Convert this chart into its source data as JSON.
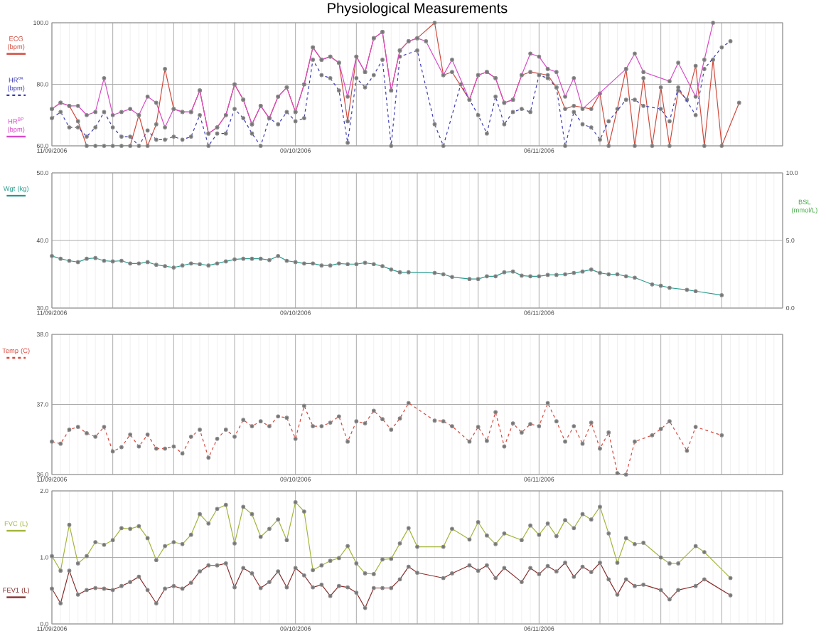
{
  "chart_data": [
    {
      "type": "line",
      "title": "Physiological Measurements",
      "xlim": [
        "2006-09-11",
        "2006-12-04"
      ],
      "xticks": [
        {
          "value": "2006-09-11",
          "label": "11/09/2006"
        },
        {
          "value": "2006-09-18",
          "label": null
        },
        {
          "value": "2006-09-25",
          "label": null
        },
        {
          "value": "2006-10-02",
          "label": null
        },
        {
          "value": "2006-10-09",
          "label": "09/10/2006"
        },
        {
          "value": "2006-10-16",
          "label": null
        },
        {
          "value": "2006-10-23",
          "label": null
        },
        {
          "value": "2006-10-30",
          "label": null
        },
        {
          "value": "2006-11-06",
          "label": "06/11/2006"
        },
        {
          "value": "2006-11-13",
          "label": null
        },
        {
          "value": "2006-11-20",
          "label": null
        },
        {
          "value": "2006-11-27",
          "label": null
        },
        {
          "value": "2006-12-04",
          "label": null
        }
      ],
      "ylim": [
        60,
        100
      ],
      "yticks": [
        {
          "value": 60,
          "label": "60.0"
        },
        {
          "value": 80,
          "label": "80.0"
        },
        {
          "value": 100,
          "label": "100.0"
        }
      ],
      "grid": true,
      "legend": "left",
      "marker": "circle",
      "series": [
        {
          "name": "ECG (bpm)",
          "color": "#d04a3c",
          "x": [
            "2006-09-11",
            "2006-09-12",
            "2006-09-13",
            "2006-09-14",
            "2006-09-15",
            "2006-09-16",
            "2006-09-17",
            "2006-09-18",
            "2006-09-19",
            "2006-09-20",
            "2006-09-21",
            "2006-09-22",
            "2006-09-23",
            "2006-09-24",
            "2006-09-25",
            "2006-09-26",
            "2006-09-27",
            "2006-09-28",
            "2006-09-29",
            "2006-09-30",
            "2006-10-01",
            "2006-10-02",
            "2006-10-03",
            "2006-10-04",
            "2006-10-05",
            "2006-10-06",
            "2006-10-07",
            "2006-10-08",
            "2006-10-09",
            "2006-10-10",
            "2006-10-11",
            "2006-10-12",
            "2006-10-13",
            "2006-10-14",
            "2006-10-15",
            "2006-10-16",
            "2006-10-17",
            "2006-10-18",
            "2006-10-19",
            "2006-10-20",
            "2006-10-21",
            "2006-10-22",
            "2006-10-23",
            "2006-10-25",
            "2006-10-26",
            "2006-10-27",
            "2006-10-29",
            "2006-10-30",
            "2006-10-31",
            "2006-11-01",
            "2006-11-02",
            "2006-11-03",
            "2006-11-04",
            "2006-11-05",
            "2006-11-07",
            "2006-11-08",
            "2006-11-09",
            "2006-11-10",
            "2006-11-12",
            "2006-11-13",
            "2006-11-14",
            "2006-11-15",
            "2006-11-16",
            "2006-11-17",
            "2006-11-18",
            "2006-11-19",
            "2006-11-20",
            "2006-11-21",
            "2006-11-22",
            "2006-11-23",
            "2006-11-24",
            "2006-11-25",
            "2006-11-26",
            "2006-11-27",
            "2006-11-29"
          ],
          "values": [
            72,
            74,
            73,
            68,
            60,
            60,
            60,
            60,
            60,
            60,
            70,
            60,
            67,
            85,
            72,
            71,
            71,
            78,
            64,
            66,
            70,
            80,
            75,
            67,
            73,
            69,
            76,
            79,
            71,
            80,
            92,
            88,
            89,
            87,
            68,
            89,
            84,
            95,
            97,
            78,
            91,
            94,
            95,
            100,
            83,
            84,
            75,
            83,
            84,
            82,
            74,
            75,
            83,
            84,
            83,
            79,
            72,
            73,
            72,
            77,
            60,
            72,
            85,
            60,
            82,
            60,
            79,
            60,
            78,
            75,
            86,
            60,
            88,
            60,
            74
          ]
        },
        {
          "name": "HR$^{ox}$ (bpm)",
          "color": "#3c3cb4",
          "line_style": "dashed",
          "x": [
            "2006-09-11",
            "2006-09-12",
            "2006-09-13",
            "2006-09-14",
            "2006-09-15",
            "2006-09-16",
            "2006-09-17",
            "2006-09-18",
            "2006-09-19",
            "2006-09-20",
            "2006-09-21",
            "2006-09-22",
            "2006-09-23",
            "2006-09-24",
            "2006-09-25",
            "2006-09-26",
            "2006-09-27",
            "2006-09-28",
            "2006-09-29",
            "2006-09-30",
            "2006-10-01",
            "2006-10-02",
            "2006-10-03",
            "2006-10-04",
            "2006-10-05",
            "2006-10-06",
            "2006-10-07",
            "2006-10-08",
            "2006-10-09",
            "2006-10-10",
            "2006-10-11",
            "2006-10-12",
            "2006-10-13",
            "2006-10-14",
            "2006-10-15",
            "2006-10-16",
            "2006-10-17",
            "2006-10-18",
            "2006-10-19",
            "2006-10-20",
            "2006-10-21",
            "2006-10-23",
            "2006-10-25",
            "2006-10-26",
            "2006-10-28",
            "2006-10-30",
            "2006-10-31",
            "2006-11-01",
            "2006-11-02",
            "2006-11-03",
            "2006-11-04",
            "2006-11-05",
            "2006-11-06",
            "2006-11-07",
            "2006-11-08",
            "2006-11-09",
            "2006-11-10",
            "2006-11-11",
            "2006-11-12",
            "2006-11-13",
            "2006-11-14",
            "2006-11-16",
            "2006-11-17",
            "2006-11-18",
            "2006-11-20",
            "2006-11-21",
            "2006-11-22",
            "2006-11-24",
            "2006-11-25",
            "2006-11-27",
            "2006-11-28"
          ],
          "values": [
            69,
            71,
            66,
            66,
            63,
            66,
            71,
            66,
            63,
            63,
            60,
            65,
            62,
            62,
            63,
            62,
            63,
            70,
            60,
            64,
            64,
            72,
            69,
            64,
            60,
            69,
            67,
            71,
            68,
            69,
            88,
            83,
            82,
            78,
            61,
            82,
            79,
            83,
            88,
            60,
            89,
            91,
            67,
            60,
            80,
            70,
            64,
            76,
            67,
            71,
            72,
            71,
            83,
            82,
            79,
            60,
            71,
            67,
            66,
            62,
            68,
            75,
            75,
            73,
            72,
            68,
            79,
            70,
            85,
            92,
            94
          ]
        },
        {
          "name": "HR$^{BP}$ (bpm)",
          "color": "#d94ac8",
          "x": [
            "2006-09-11",
            "2006-09-12",
            "2006-09-13",
            "2006-09-14",
            "2006-09-15",
            "2006-09-16",
            "2006-09-17",
            "2006-09-18",
            "2006-09-19",
            "2006-09-20",
            "2006-09-21",
            "2006-09-22",
            "2006-09-23",
            "2006-09-24",
            "2006-09-25",
            "2006-09-26",
            "2006-09-27",
            "2006-09-28",
            "2006-09-29",
            "2006-09-30",
            "2006-10-01",
            "2006-10-02",
            "2006-10-03",
            "2006-10-04",
            "2006-10-05",
            "2006-10-06",
            "2006-10-07",
            "2006-10-08",
            "2006-10-09",
            "2006-10-10",
            "2006-10-11",
            "2006-10-12",
            "2006-10-13",
            "2006-10-14",
            "2006-10-15",
            "2006-10-16",
            "2006-10-17",
            "2006-10-18",
            "2006-10-19",
            "2006-10-20",
            "2006-10-21",
            "2006-10-22",
            "2006-10-23",
            "2006-10-24",
            "2006-10-26",
            "2006-10-27",
            "2006-10-29",
            "2006-10-30",
            "2006-10-31",
            "2006-11-01",
            "2006-11-02",
            "2006-11-03",
            "2006-11-04",
            "2006-11-05",
            "2006-11-06",
            "2006-11-07",
            "2006-11-08",
            "2006-11-09",
            "2006-11-10",
            "2006-11-11",
            "2006-11-16",
            "2006-11-17",
            "2006-11-18",
            "2006-11-21",
            "2006-11-22",
            "2006-11-24",
            "2006-11-25",
            "2006-11-26"
          ],
          "values": [
            72,
            74,
            73,
            73,
            70,
            71,
            82,
            70,
            71,
            72,
            70,
            76,
            74,
            66,
            72,
            71,
            71,
            78,
            64,
            66,
            70,
            80,
            75,
            67,
            73,
            69,
            76,
            79,
            71,
            80,
            92,
            88,
            89,
            87,
            76,
            89,
            84,
            95,
            97,
            78,
            91,
            94,
            95,
            94,
            83,
            88,
            75,
            83,
            84,
            82,
            74,
            75,
            83,
            90,
            89,
            85,
            84,
            76,
            82,
            72,
            85,
            90,
            84,
            81,
            87,
            76,
            88,
            100
          ]
        }
      ]
    },
    {
      "type": "line",
      "xlim": [
        "2006-09-11",
        "2006-12-04"
      ],
      "xticks": [
        {
          "value": "2006-09-11",
          "label": "11/09/2006"
        },
        {
          "value": "2006-09-18",
          "label": null
        },
        {
          "value": "2006-09-25",
          "label": null
        },
        {
          "value": "2006-10-02",
          "label": null
        },
        {
          "value": "2006-10-09",
          "label": "09/10/2006"
        },
        {
          "value": "2006-10-16",
          "label": null
        },
        {
          "value": "2006-10-23",
          "label": null
        },
        {
          "value": "2006-10-30",
          "label": null
        },
        {
          "value": "2006-11-06",
          "label": "06/11/2006"
        },
        {
          "value": "2006-11-13",
          "label": null
        },
        {
          "value": "2006-11-20",
          "label": null
        },
        {
          "value": "2006-11-27",
          "label": null
        },
        {
          "value": "2006-12-04",
          "label": null
        }
      ],
      "ylim": [
        30,
        50
      ],
      "yticks": [
        {
          "value": 30,
          "label": "30.0"
        },
        {
          "value": 40,
          "label": "40.0"
        },
        {
          "value": 50,
          "label": "50.0"
        }
      ],
      "y2label": "BSL (mmol/L)",
      "y2lim": [
        0,
        10
      ],
      "y2ticks": [
        {
          "value": 0,
          "label": "0.0"
        },
        {
          "value": 5,
          "label": "5.0"
        },
        {
          "value": 10,
          "label": "10.0"
        }
      ],
      "grid": true,
      "legend": "left",
      "marker": "circle",
      "series": [
        {
          "name": "Wgt (kg)",
          "color": "#2a9d8f",
          "x": [
            "2006-09-11",
            "2006-09-12",
            "2006-09-13",
            "2006-09-14",
            "2006-09-15",
            "2006-09-16",
            "2006-09-17",
            "2006-09-18",
            "2006-09-19",
            "2006-09-20",
            "2006-09-21",
            "2006-09-22",
            "2006-09-23",
            "2006-09-24",
            "2006-09-25",
            "2006-09-26",
            "2006-09-27",
            "2006-09-28",
            "2006-09-29",
            "2006-09-30",
            "2006-10-01",
            "2006-10-02",
            "2006-10-03",
            "2006-10-04",
            "2006-10-05",
            "2006-10-06",
            "2006-10-07",
            "2006-10-08",
            "2006-10-09",
            "2006-10-10",
            "2006-10-11",
            "2006-10-12",
            "2006-10-13",
            "2006-10-14",
            "2006-10-15",
            "2006-10-16",
            "2006-10-17",
            "2006-10-18",
            "2006-10-19",
            "2006-10-20",
            "2006-10-21",
            "2006-10-22",
            "2006-10-25",
            "2006-10-26",
            "2006-10-27",
            "2006-10-29",
            "2006-10-30",
            "2006-10-31",
            "2006-11-01",
            "2006-11-02",
            "2006-11-03",
            "2006-11-04",
            "2006-11-05",
            "2006-11-06",
            "2006-11-07",
            "2006-11-08",
            "2006-11-09",
            "2006-11-10",
            "2006-11-11",
            "2006-11-12",
            "2006-11-13",
            "2006-11-14",
            "2006-11-15",
            "2006-11-16",
            "2006-11-17",
            "2006-11-19",
            "2006-11-20",
            "2006-11-21",
            "2006-11-23",
            "2006-11-24",
            "2006-11-27"
          ],
          "values": [
            37.7,
            37.3,
            37.0,
            36.8,
            37.3,
            37.4,
            37.0,
            36.9,
            37.0,
            36.6,
            36.6,
            36.8,
            36.4,
            36.2,
            36.0,
            36.3,
            36.6,
            36.5,
            36.3,
            36.6,
            36.9,
            37.2,
            37.3,
            37.3,
            37.3,
            37.1,
            37.7,
            37.0,
            36.8,
            36.6,
            36.6,
            36.3,
            36.3,
            36.6,
            36.5,
            36.5,
            36.7,
            36.5,
            36.2,
            35.7,
            35.3,
            35.3,
            35.2,
            35.0,
            34.6,
            34.3,
            34.3,
            34.7,
            34.7,
            35.3,
            35.4,
            34.8,
            34.7,
            34.7,
            34.9,
            34.9,
            35.0,
            35.2,
            35.4,
            35.7,
            35.2,
            35.0,
            35.0,
            34.7,
            34.5,
            33.5,
            33.3,
            33.0,
            32.7,
            32.5,
            31.9
          ]
        }
      ]
    },
    {
      "type": "line",
      "xlim": [
        "2006-09-11",
        "2006-12-04"
      ],
      "xticks": [
        {
          "value": "2006-09-11",
          "label": "11/09/2006"
        },
        {
          "value": "2006-09-18",
          "label": null
        },
        {
          "value": "2006-09-25",
          "label": null
        },
        {
          "value": "2006-10-02",
          "label": null
        },
        {
          "value": "2006-10-09",
          "label": "09/10/2006"
        },
        {
          "value": "2006-10-16",
          "label": null
        },
        {
          "value": "2006-10-23",
          "label": null
        },
        {
          "value": "2006-10-30",
          "label": null
        },
        {
          "value": "2006-11-06",
          "label": "06/11/2006"
        },
        {
          "value": "2006-11-13",
          "label": null
        },
        {
          "value": "2006-11-20",
          "label": null
        },
        {
          "value": "2006-11-27",
          "label": null
        },
        {
          "value": "2006-12-04",
          "label": null
        }
      ],
      "ylim": [
        36,
        38
      ],
      "yticks": [
        {
          "value": 36,
          "label": "36.0"
        },
        {
          "value": 37,
          "label": "37.0"
        },
        {
          "value": 38,
          "label": "38.0"
        }
      ],
      "grid": true,
      "legend": "left",
      "marker": "circle",
      "series": [
        {
          "name": "Temp (C)",
          "color": "#d9463c",
          "line_style": "dashed",
          "x": [
            "2006-09-11",
            "2006-09-12",
            "2006-09-13",
            "2006-09-14",
            "2006-09-15",
            "2006-09-16",
            "2006-09-17",
            "2006-09-18",
            "2006-09-19",
            "2006-09-20",
            "2006-09-21",
            "2006-09-22",
            "2006-09-23",
            "2006-09-24",
            "2006-09-25",
            "2006-09-26",
            "2006-09-27",
            "2006-09-28",
            "2006-09-29",
            "2006-09-30",
            "2006-10-01",
            "2006-10-02",
            "2006-10-03",
            "2006-10-04",
            "2006-10-05",
            "2006-10-06",
            "2006-10-07",
            "2006-10-08",
            "2006-10-09",
            "2006-10-10",
            "2006-10-11",
            "2006-10-12",
            "2006-10-13",
            "2006-10-14",
            "2006-10-15",
            "2006-10-16",
            "2006-10-17",
            "2006-10-18",
            "2006-10-19",
            "2006-10-20",
            "2006-10-21",
            "2006-10-22",
            "2006-10-25",
            "2006-10-26",
            "2006-10-27",
            "2006-10-29",
            "2006-10-30",
            "2006-10-31",
            "2006-11-01",
            "2006-11-02",
            "2006-11-03",
            "2006-11-04",
            "2006-11-05",
            "2006-11-06",
            "2006-11-07",
            "2006-11-08",
            "2006-11-09",
            "2006-11-10",
            "2006-11-11",
            "2006-11-12",
            "2006-11-13",
            "2006-11-14",
            "2006-11-15",
            "2006-11-16",
            "2006-11-17",
            "2006-11-19",
            "2006-11-20",
            "2006-11-21",
            "2006-11-23",
            "2006-11-24",
            "2006-11-27"
          ],
          "values": [
            36.47,
            36.44,
            36.64,
            36.68,
            36.59,
            36.54,
            36.68,
            36.33,
            36.39,
            36.57,
            36.4,
            36.57,
            36.37,
            36.37,
            36.4,
            36.3,
            36.54,
            36.64,
            36.24,
            36.51,
            36.64,
            36.54,
            36.78,
            36.69,
            36.76,
            36.69,
            36.83,
            36.81,
            36.51,
            36.98,
            36.69,
            36.69,
            36.74,
            36.83,
            36.47,
            36.76,
            36.73,
            36.91,
            36.79,
            36.64,
            36.8,
            37.02,
            36.77,
            36.76,
            36.69,
            36.47,
            36.68,
            36.48,
            36.89,
            36.4,
            36.73,
            36.6,
            36.72,
            36.69,
            37.02,
            36.76,
            36.47,
            36.69,
            36.44,
            36.74,
            36.37,
            36.6,
            36.02,
            36.0,
            36.47,
            36.56,
            36.65,
            36.76,
            36.34,
            36.68,
            36.56
          ]
        }
      ]
    },
    {
      "type": "line",
      "xlim": [
        "2006-09-11",
        "2006-12-04"
      ],
      "xticks": [
        {
          "value": "2006-09-11",
          "label": "11/09/2006"
        },
        {
          "value": "2006-09-18",
          "label": null
        },
        {
          "value": "2006-09-25",
          "label": null
        },
        {
          "value": "2006-10-02",
          "label": null
        },
        {
          "value": "2006-10-09",
          "label": "09/10/2006"
        },
        {
          "value": "2006-10-16",
          "label": null
        },
        {
          "value": "2006-10-23",
          "label": null
        },
        {
          "value": "2006-10-30",
          "label": null
        },
        {
          "value": "2006-11-06",
          "label": "06/11/2006"
        },
        {
          "value": "2006-11-13",
          "label": null
        },
        {
          "value": "2006-11-20",
          "label": null
        },
        {
          "value": "2006-11-27",
          "label": null
        },
        {
          "value": "2006-12-04",
          "label": null
        }
      ],
      "ylim": [
        0,
        2
      ],
      "yticks": [
        {
          "value": 0,
          "label": "0.0"
        },
        {
          "value": 1,
          "label": "1.0"
        },
        {
          "value": 2,
          "label": "2.0"
        }
      ],
      "grid": true,
      "legend": "left",
      "marker": "circle",
      "series": [
        {
          "name": "FVC (L)",
          "color": "#a6b43a",
          "x": [
            "2006-09-11",
            "2006-09-12",
            "2006-09-13",
            "2006-09-14",
            "2006-09-15",
            "2006-09-16",
            "2006-09-17",
            "2006-09-18",
            "2006-09-19",
            "2006-09-20",
            "2006-09-21",
            "2006-09-22",
            "2006-09-23",
            "2006-09-24",
            "2006-09-25",
            "2006-09-26",
            "2006-09-27",
            "2006-09-28",
            "2006-09-29",
            "2006-09-30",
            "2006-10-01",
            "2006-10-02",
            "2006-10-03",
            "2006-10-04",
            "2006-10-05",
            "2006-10-06",
            "2006-10-07",
            "2006-10-08",
            "2006-10-09",
            "2006-10-10",
            "2006-10-11",
            "2006-10-12",
            "2006-10-13",
            "2006-10-14",
            "2006-10-15",
            "2006-10-16",
            "2006-10-17",
            "2006-10-18",
            "2006-10-19",
            "2006-10-20",
            "2006-10-21",
            "2006-10-22",
            "2006-10-23",
            "2006-10-26",
            "2006-10-27",
            "2006-10-29",
            "2006-10-30",
            "2006-10-31",
            "2006-11-01",
            "2006-11-02",
            "2006-11-04",
            "2006-11-05",
            "2006-11-06",
            "2006-11-07",
            "2006-11-08",
            "2006-11-09",
            "2006-11-10",
            "2006-11-11",
            "2006-11-12",
            "2006-11-13",
            "2006-11-14",
            "2006-11-15",
            "2006-11-16",
            "2006-11-17",
            "2006-11-18",
            "2006-11-20",
            "2006-11-21",
            "2006-11-22",
            "2006-11-24",
            "2006-11-25",
            "2006-11-28"
          ],
          "values": [
            1.02,
            0.8,
            1.49,
            0.91,
            1.02,
            1.23,
            1.19,
            1.26,
            1.44,
            1.43,
            1.47,
            1.29,
            0.96,
            1.17,
            1.23,
            1.2,
            1.34,
            1.65,
            1.51,
            1.73,
            1.79,
            1.21,
            1.76,
            1.65,
            1.31,
            1.43,
            1.57,
            1.26,
            1.83,
            1.69,
            0.81,
            0.88,
            0.95,
            0.99,
            1.17,
            0.91,
            0.76,
            0.75,
            0.97,
            0.98,
            1.21,
            1.44,
            1.16,
            1.16,
            1.43,
            1.27,
            1.53,
            1.33,
            1.2,
            1.36,
            1.26,
            1.48,
            1.34,
            1.51,
            1.32,
            1.56,
            1.44,
            1.65,
            1.57,
            1.76,
            1.36,
            0.92,
            1.29,
            1.2,
            1.22,
            1.0,
            0.91,
            0.91,
            1.17,
            1.08,
            0.69
          ]
        },
        {
          "name": "FEV1 (L)",
          "color": "#8b2e2e",
          "x": [
            "2006-09-11",
            "2006-09-12",
            "2006-09-13",
            "2006-09-14",
            "2006-09-15",
            "2006-09-16",
            "2006-09-17",
            "2006-09-18",
            "2006-09-19",
            "2006-09-20",
            "2006-09-21",
            "2006-09-22",
            "2006-09-23",
            "2006-09-24",
            "2006-09-25",
            "2006-09-26",
            "2006-09-27",
            "2006-09-28",
            "2006-09-29",
            "2006-09-30",
            "2006-10-01",
            "2006-10-02",
            "2006-10-03",
            "2006-10-04",
            "2006-10-05",
            "2006-10-06",
            "2006-10-07",
            "2006-10-08",
            "2006-10-09",
            "2006-10-10",
            "2006-10-11",
            "2006-10-12",
            "2006-10-13",
            "2006-10-14",
            "2006-10-15",
            "2006-10-16",
            "2006-10-17",
            "2006-10-18",
            "2006-10-19",
            "2006-10-20",
            "2006-10-21",
            "2006-10-22",
            "2006-10-23",
            "2006-10-26",
            "2006-10-27",
            "2006-10-29",
            "2006-10-30",
            "2006-10-31",
            "2006-11-01",
            "2006-11-02",
            "2006-11-04",
            "2006-11-05",
            "2006-11-06",
            "2006-11-07",
            "2006-11-08",
            "2006-11-09",
            "2006-11-10",
            "2006-11-11",
            "2006-11-12",
            "2006-11-13",
            "2006-11-14",
            "2006-11-15",
            "2006-11-16",
            "2006-11-17",
            "2006-11-18",
            "2006-11-20",
            "2006-11-21",
            "2006-11-22",
            "2006-11-24",
            "2006-11-25",
            "2006-11-28"
          ],
          "values": [
            0.53,
            0.31,
            0.8,
            0.44,
            0.51,
            0.54,
            0.53,
            0.51,
            0.57,
            0.63,
            0.71,
            0.51,
            0.31,
            0.53,
            0.57,
            0.53,
            0.62,
            0.79,
            0.88,
            0.88,
            0.91,
            0.55,
            0.84,
            0.76,
            0.54,
            0.63,
            0.79,
            0.55,
            0.84,
            0.73,
            0.55,
            0.59,
            0.42,
            0.57,
            0.55,
            0.47,
            0.24,
            0.54,
            0.54,
            0.54,
            0.67,
            0.86,
            0.77,
            0.69,
            0.76,
            0.88,
            0.8,
            0.88,
            0.69,
            0.84,
            0.63,
            0.84,
            0.75,
            0.87,
            0.79,
            0.92,
            0.71,
            0.86,
            0.78,
            0.92,
            0.67,
            0.44,
            0.67,
            0.57,
            0.59,
            0.51,
            0.37,
            0.51,
            0.57,
            0.67,
            0.43
          ]
        }
      ]
    }
  ]
}
